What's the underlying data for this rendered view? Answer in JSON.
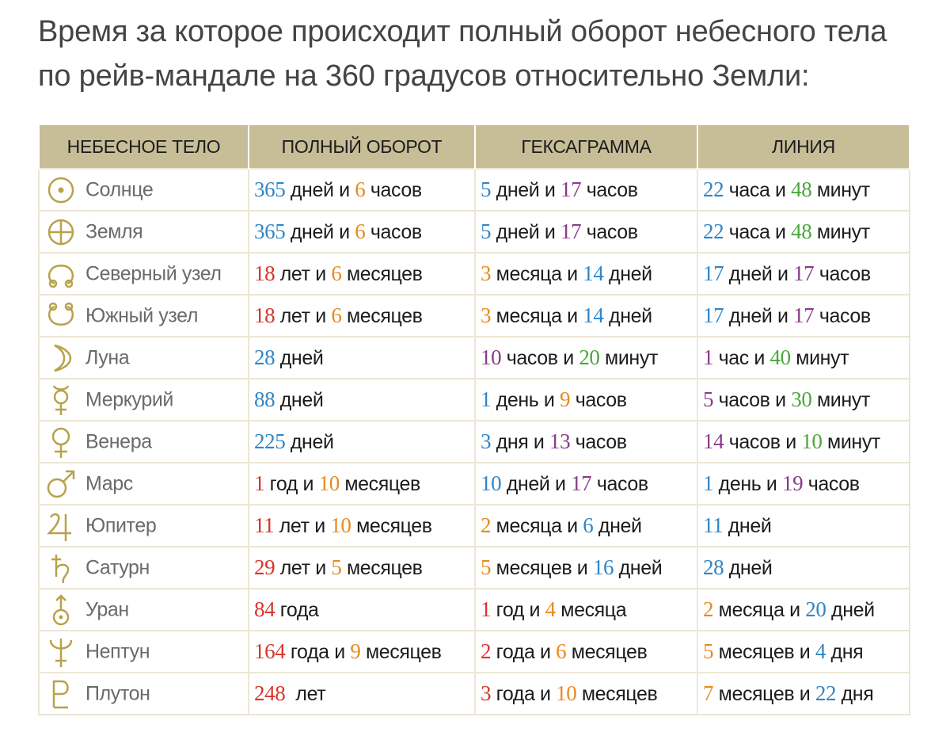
{
  "intro_text": "Время за которое происходит полный оборот небесного тела по рейв-мандале на 360 градусов относительно Земли:",
  "colors": {
    "header_bg": "#c7bd97",
    "symbol": "#b8a24a",
    "num_blue": "#2f86c8",
    "num_orange": "#e88a1e",
    "num_red": "#d8342c",
    "num_purple": "#8a3a8a",
    "num_green": "#49a83a"
  },
  "table": {
    "headers": [
      "НЕБЕСНОЕ ТЕЛО",
      "ПОЛНЫЙ ОБОРОТ",
      "ГЕКСАГРАММА",
      "ЛИНИЯ"
    ],
    "rows": [
      {
        "body": "Солнце",
        "icon": "sun-symbol-icon",
        "cells": [
          [
            {
              "t": "365",
              "c": "blue"
            },
            {
              "t": " дней и "
            },
            {
              "t": "6",
              "c": "orange"
            },
            {
              "t": " часов"
            }
          ],
          [
            {
              "t": "5",
              "c": "blue"
            },
            {
              "t": " дней и "
            },
            {
              "t": "17",
              "c": "purple"
            },
            {
              "t": " часов"
            }
          ],
          [
            {
              "t": "22",
              "c": "blue"
            },
            {
              "t": " часа и "
            },
            {
              "t": "48",
              "c": "green"
            },
            {
              "t": " минут"
            }
          ]
        ]
      },
      {
        "body": "Земля",
        "icon": "earth-symbol-icon",
        "cells": [
          [
            {
              "t": "365",
              "c": "blue"
            },
            {
              "t": " дней и "
            },
            {
              "t": "6",
              "c": "orange"
            },
            {
              "t": " часов"
            }
          ],
          [
            {
              "t": "5",
              "c": "blue"
            },
            {
              "t": " дней и "
            },
            {
              "t": "17",
              "c": "purple"
            },
            {
              "t": " часов"
            }
          ],
          [
            {
              "t": "22",
              "c": "blue"
            },
            {
              "t": " часа и "
            },
            {
              "t": "48",
              "c": "green"
            },
            {
              "t": " минут"
            }
          ]
        ]
      },
      {
        "body": "Северный узел",
        "icon": "north-node-symbol-icon",
        "cells": [
          [
            {
              "t": "18",
              "c": "red"
            },
            {
              "t": " лет и "
            },
            {
              "t": "6",
              "c": "orange"
            },
            {
              "t": " месяцев"
            }
          ],
          [
            {
              "t": "3",
              "c": "orange"
            },
            {
              "t": " месяца и "
            },
            {
              "t": "14",
              "c": "blue"
            },
            {
              "t": " дней"
            }
          ],
          [
            {
              "t": "17",
              "c": "blue"
            },
            {
              "t": " дней и "
            },
            {
              "t": "17",
              "c": "purple"
            },
            {
              "t": " часов"
            }
          ]
        ]
      },
      {
        "body": "Южный узел",
        "icon": "south-node-symbol-icon",
        "cells": [
          [
            {
              "t": "18",
              "c": "red"
            },
            {
              "t": " лет и "
            },
            {
              "t": "6",
              "c": "orange"
            },
            {
              "t": " месяцев"
            }
          ],
          [
            {
              "t": "3",
              "c": "orange"
            },
            {
              "t": " месяца и "
            },
            {
              "t": "14",
              "c": "blue"
            },
            {
              "t": " дней"
            }
          ],
          [
            {
              "t": "17",
              "c": "blue"
            },
            {
              "t": " дней и "
            },
            {
              "t": "17",
              "c": "purple"
            },
            {
              "t": " часов"
            }
          ]
        ]
      },
      {
        "body": "Луна",
        "icon": "moon-symbol-icon",
        "cells": [
          [
            {
              "t": "28",
              "c": "blue"
            },
            {
              "t": " дней"
            }
          ],
          [
            {
              "t": "10",
              "c": "purple"
            },
            {
              "t": " часов и "
            },
            {
              "t": "20",
              "c": "green"
            },
            {
              "t": " минут"
            }
          ],
          [
            {
              "t": "1",
              "c": "purple"
            },
            {
              "t": " час и "
            },
            {
              "t": "40",
              "c": "green"
            },
            {
              "t": " минут"
            }
          ]
        ]
      },
      {
        "body": "Меркурий",
        "icon": "mercury-symbol-icon",
        "cells": [
          [
            {
              "t": "88",
              "c": "blue"
            },
            {
              "t": " дней"
            }
          ],
          [
            {
              "t": "1",
              "c": "blue"
            },
            {
              "t": " день и "
            },
            {
              "t": "9",
              "c": "orange"
            },
            {
              "t": " часов"
            }
          ],
          [
            {
              "t": "5",
              "c": "purple"
            },
            {
              "t": " часов и "
            },
            {
              "t": "30",
              "c": "green"
            },
            {
              "t": " минут"
            }
          ]
        ]
      },
      {
        "body": "Венера",
        "icon": "venus-symbol-icon",
        "cells": [
          [
            {
              "t": "225",
              "c": "blue"
            },
            {
              "t": " дней"
            }
          ],
          [
            {
              "t": "3",
              "c": "blue"
            },
            {
              "t": " дня и "
            },
            {
              "t": "13",
              "c": "purple"
            },
            {
              "t": " часов"
            }
          ],
          [
            {
              "t": "14",
              "c": "purple"
            },
            {
              "t": " часов и "
            },
            {
              "t": "10",
              "c": "green"
            },
            {
              "t": " минут"
            }
          ]
        ]
      },
      {
        "body": "Марс",
        "icon": "mars-symbol-icon",
        "cells": [
          [
            {
              "t": "1",
              "c": "red"
            },
            {
              "t": " год и "
            },
            {
              "t": "10",
              "c": "orange"
            },
            {
              "t": " месяцев"
            }
          ],
          [
            {
              "t": "10",
              "c": "blue"
            },
            {
              "t": " дней и "
            },
            {
              "t": "17",
              "c": "purple"
            },
            {
              "t": " часов"
            }
          ],
          [
            {
              "t": "1",
              "c": "blue"
            },
            {
              "t": " день и "
            },
            {
              "t": "19",
              "c": "purple"
            },
            {
              "t": " часов"
            }
          ]
        ]
      },
      {
        "body": "Юпитер",
        "icon": "jupiter-symbol-icon",
        "cells": [
          [
            {
              "t": "11",
              "c": "red"
            },
            {
              "t": " лет и "
            },
            {
              "t": "10",
              "c": "orange"
            },
            {
              "t": " месяцев"
            }
          ],
          [
            {
              "t": "2",
              "c": "orange"
            },
            {
              "t": " месяца и "
            },
            {
              "t": "6",
              "c": "blue"
            },
            {
              "t": " дней"
            }
          ],
          [
            {
              "t": "11",
              "c": "blue"
            },
            {
              "t": " дней"
            }
          ]
        ]
      },
      {
        "body": "Сатурн",
        "icon": "saturn-symbol-icon",
        "cells": [
          [
            {
              "t": "29",
              "c": "red"
            },
            {
              "t": " лет и "
            },
            {
              "t": "5",
              "c": "orange"
            },
            {
              "t": " месяцев"
            }
          ],
          [
            {
              "t": "5",
              "c": "orange"
            },
            {
              "t": " месяцев и "
            },
            {
              "t": "16",
              "c": "blue"
            },
            {
              "t": " дней"
            }
          ],
          [
            {
              "t": "28",
              "c": "blue"
            },
            {
              "t": " дней"
            }
          ]
        ]
      },
      {
        "body": "Уран",
        "icon": "uranus-symbol-icon",
        "cells": [
          [
            {
              "t": "84",
              "c": "red"
            },
            {
              "t": " года"
            }
          ],
          [
            {
              "t": "1",
              "c": "red"
            },
            {
              "t": " год и "
            },
            {
              "t": "4",
              "c": "orange"
            },
            {
              "t": " месяца"
            }
          ],
          [
            {
              "t": "2",
              "c": "orange"
            },
            {
              "t": " месяца и "
            },
            {
              "t": "20",
              "c": "blue"
            },
            {
              "t": " дней"
            }
          ]
        ]
      },
      {
        "body": "Нептун",
        "icon": "neptune-symbol-icon",
        "cells": [
          [
            {
              "t": "164",
              "c": "red"
            },
            {
              "t": " года и "
            },
            {
              "t": "9",
              "c": "orange"
            },
            {
              "t": " месяцев"
            }
          ],
          [
            {
              "t": "2",
              "c": "red"
            },
            {
              "t": " года и "
            },
            {
              "t": "6",
              "c": "orange"
            },
            {
              "t": " месяцев"
            }
          ],
          [
            {
              "t": "5",
              "c": "orange"
            },
            {
              "t": " месяцев и "
            },
            {
              "t": "4",
              "c": "blue"
            },
            {
              "t": " дня"
            }
          ]
        ]
      },
      {
        "body": "Плутон",
        "icon": "pluto-symbol-icon",
        "cells": [
          [
            {
              "t": "248",
              "c": "red"
            },
            {
              "t": "  лет"
            }
          ],
          [
            {
              "t": "3",
              "c": "red"
            },
            {
              "t": " года и "
            },
            {
              "t": "10",
              "c": "orange"
            },
            {
              "t": " месяцев"
            }
          ],
          [
            {
              "t": "7",
              "c": "orange"
            },
            {
              "t": " месяцев и "
            },
            {
              "t": "22",
              "c": "blue"
            },
            {
              "t": " дня"
            }
          ]
        ]
      }
    ]
  }
}
